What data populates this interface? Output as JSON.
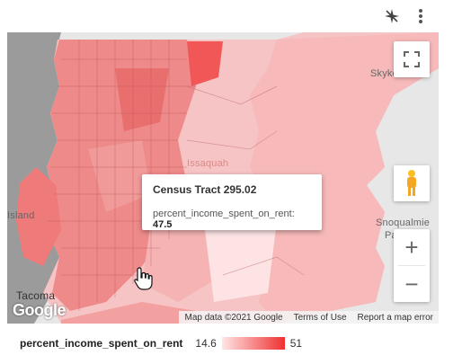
{
  "top_icons": [
    {
      "name": "cross-filter-icon"
    },
    {
      "name": "more-vert-icon"
    }
  ],
  "map": {
    "place_labels": [
      {
        "id": "skykomish",
        "text": "Skykomish"
      },
      {
        "id": "snoqualmie",
        "text": "Snoqualmie"
      },
      {
        "id": "pass",
        "text": "Pass"
      },
      {
        "id": "tacoma",
        "text": "Tacoma"
      },
      {
        "id": "island",
        "text": "Island"
      },
      {
        "id": "issaquah",
        "text": "Issaquah"
      }
    ],
    "tooltip": {
      "title": "Census Tract 295.02",
      "metric_label": "percent_income_spent_on_rent:",
      "metric_value": "47.5"
    },
    "attribution": {
      "map_data": "Map data ©2021 Google",
      "terms": "Terms of Use",
      "report": "Report a map error"
    },
    "logo": "Google",
    "controls": {
      "zoom_in": "+",
      "zoom_out": "−"
    }
  },
  "legend": {
    "label": "percent_income_spent_on_rent",
    "min": "14.6",
    "max": "51",
    "color_low": "#ffe5e5",
    "color_high": "#f03030"
  }
}
